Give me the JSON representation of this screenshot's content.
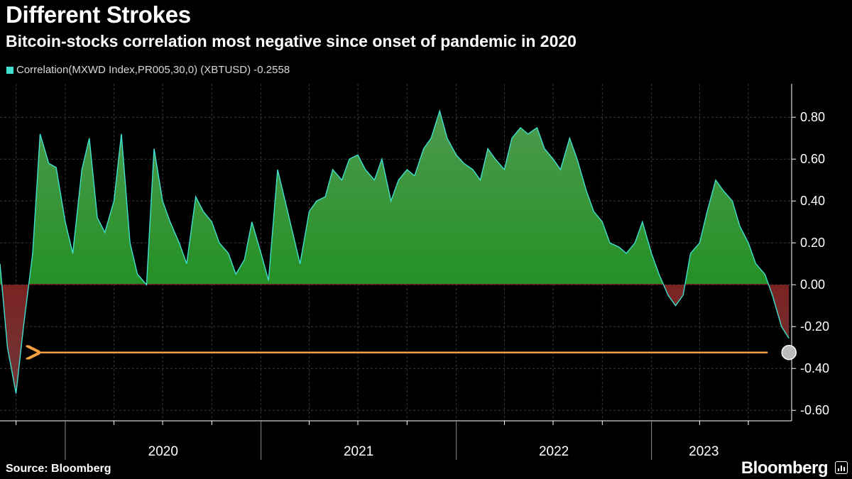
{
  "header": {
    "title": "Different Strokes",
    "subtitle": "Bitcoin-stocks correlation most negative since onset of pandemic in 2020"
  },
  "footer": {
    "source": "Source: Bloomberg",
    "brand": "Bloomberg"
  },
  "colors": {
    "positive_fill": "#0a8a0a",
    "negative_fill": "#8b0000",
    "line": "#40e0d0",
    "arrow": "#f5a040",
    "grid": "#3a3a3a"
  },
  "chart_data": {
    "type": "area",
    "title": "Different Strokes",
    "subtitle": "Bitcoin-stocks correlation most negative since onset of pandemic in 2020",
    "xlabel": "",
    "ylabel": "",
    "ylim": [
      -0.65,
      0.96
    ],
    "xlim": [
      "2019-09-01",
      "2023-09-20"
    ],
    "y_ticks": [
      "0.80",
      "0.60",
      "0.40",
      "0.20",
      "0.00",
      "-0.20",
      "-0.40",
      "-0.60"
    ],
    "y_tick_values": [
      0.8,
      0.6,
      0.4,
      0.2,
      0.0,
      -0.2,
      -0.4,
      -0.6
    ],
    "x_tick_labels": [
      "2020",
      "2021",
      "2022",
      "2023"
    ],
    "grid": true,
    "legend_position": "top-left",
    "series": [
      {
        "name": "Correlation(MXWD Index,PR005,30,0) (XBTUSD)",
        "last_value": "-0.2558",
        "x": [
          "2019-09-01",
          "2019-09-15",
          "2019-10-01",
          "2019-10-15",
          "2019-11-01",
          "2019-11-15",
          "2019-12-01",
          "2019-12-15",
          "2020-01-01",
          "2020-01-15",
          "2020-02-01",
          "2020-02-15",
          "2020-03-01",
          "2020-03-15",
          "2020-04-01",
          "2020-04-15",
          "2020-05-01",
          "2020-05-15",
          "2020-06-01",
          "2020-06-15",
          "2020-07-01",
          "2020-07-15",
          "2020-08-01",
          "2020-08-15",
          "2020-09-01",
          "2020-09-15",
          "2020-10-01",
          "2020-10-15",
          "2020-11-01",
          "2020-11-15",
          "2020-12-01",
          "2020-12-15",
          "2021-01-01",
          "2021-01-15",
          "2021-02-01",
          "2021-02-15",
          "2021-03-01",
          "2021-03-15",
          "2021-04-01",
          "2021-04-15",
          "2021-05-01",
          "2021-05-15",
          "2021-06-01",
          "2021-06-15",
          "2021-07-01",
          "2021-07-15",
          "2021-08-01",
          "2021-08-15",
          "2021-09-01",
          "2021-09-15",
          "2021-10-01",
          "2021-10-15",
          "2021-11-01",
          "2021-11-15",
          "2021-12-01",
          "2021-12-15",
          "2022-01-01",
          "2022-01-15",
          "2022-02-01",
          "2022-02-15",
          "2022-03-01",
          "2022-03-15",
          "2022-04-01",
          "2022-04-15",
          "2022-05-01",
          "2022-05-15",
          "2022-06-01",
          "2022-06-15",
          "2022-07-01",
          "2022-07-15",
          "2022-08-01",
          "2022-08-15",
          "2022-09-01",
          "2022-09-15",
          "2022-10-01",
          "2022-10-15",
          "2022-11-01",
          "2022-11-15",
          "2022-12-01",
          "2022-12-15",
          "2023-01-01",
          "2023-01-15",
          "2023-02-01",
          "2023-02-15",
          "2023-03-01",
          "2023-03-15",
          "2023-04-01",
          "2023-04-15",
          "2023-05-01",
          "2023-05-15",
          "2023-06-01",
          "2023-06-15",
          "2023-07-01",
          "2023-07-15",
          "2023-08-01",
          "2023-08-15",
          "2023-09-01",
          "2023-09-15"
        ],
        "values": [
          0.1,
          -0.3,
          -0.52,
          -0.2,
          0.15,
          0.72,
          0.58,
          0.56,
          0.3,
          0.15,
          0.55,
          0.7,
          0.32,
          0.25,
          0.4,
          0.72,
          0.2,
          0.05,
          0.0,
          0.65,
          0.4,
          0.3,
          0.2,
          0.1,
          0.42,
          0.35,
          0.3,
          0.2,
          0.15,
          0.05,
          0.12,
          0.3,
          0.15,
          0.02,
          0.55,
          0.4,
          0.25,
          0.1,
          0.35,
          0.4,
          0.42,
          0.55,
          0.5,
          0.6,
          0.62,
          0.55,
          0.5,
          0.6,
          0.4,
          0.5,
          0.55,
          0.52,
          0.65,
          0.7,
          0.83,
          0.7,
          0.62,
          0.58,
          0.55,
          0.5,
          0.65,
          0.6,
          0.55,
          0.7,
          0.75,
          0.72,
          0.75,
          0.65,
          0.6,
          0.55,
          0.7,
          0.6,
          0.45,
          0.35,
          0.3,
          0.2,
          0.18,
          0.15,
          0.2,
          0.3,
          0.15,
          0.05,
          -0.05,
          -0.1,
          -0.05,
          0.15,
          0.2,
          0.35,
          0.5,
          0.45,
          0.4,
          0.28,
          0.2,
          0.1,
          0.05,
          -0.05,
          -0.2,
          -0.2558
        ]
      }
    ],
    "annotations": [
      {
        "type": "arrow",
        "from_x": "2023-09-15",
        "to_x": "2019-11-10",
        "y": -0.2558,
        "color": "orange"
      },
      {
        "type": "marker",
        "x": "2023-09-15",
        "y": -0.2558,
        "shape": "circle"
      }
    ]
  }
}
